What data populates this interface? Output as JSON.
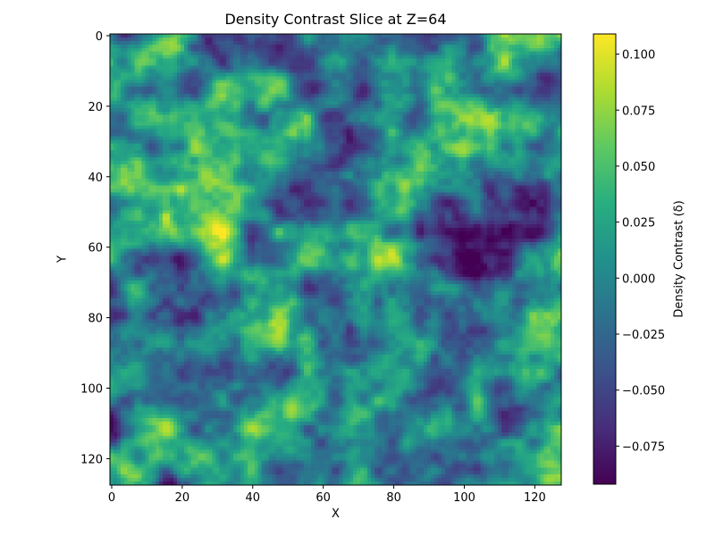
{
  "chart_data": {
    "type": "heatmap",
    "title": "Density Contrast Slice at Z=64",
    "xlabel": "X",
    "ylabel": "Y",
    "grid_size": [
      128,
      128
    ],
    "x_ticks": [
      0,
      20,
      40,
      60,
      80,
      100,
      120
    ],
    "y_ticks": [
      0,
      20,
      40,
      60,
      80,
      100,
      120
    ],
    "xlim": [
      0,
      128
    ],
    "ylim": [
      128,
      0
    ],
    "colormap": "viridis",
    "colorbar": {
      "label": "Density Contrast (δ)",
      "range": [
        -0.092,
        0.109
      ],
      "ticks": [
        -0.075,
        -0.05,
        -0.025,
        0.0,
        0.025,
        0.05,
        0.075,
        0.1
      ],
      "tick_labels": [
        "−0.075",
        "−0.050",
        "−0.025",
        "0.000",
        "0.025",
        "0.050",
        "0.075",
        "0.100"
      ],
      "placement": "right"
    },
    "grid": false
  }
}
